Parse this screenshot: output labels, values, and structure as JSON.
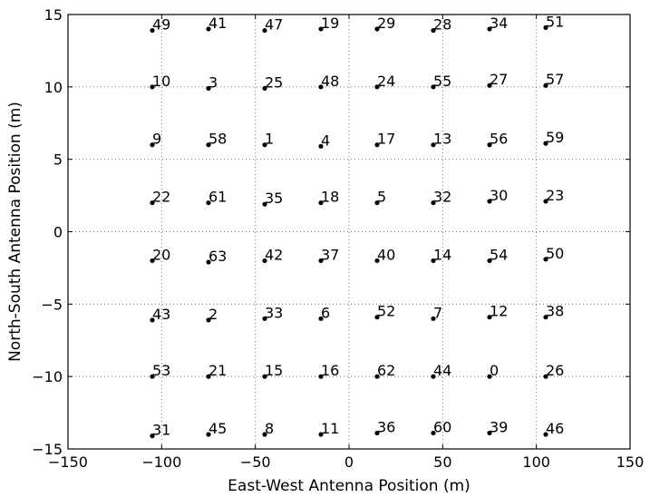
{
  "chart_data": {
    "type": "scatter",
    "xlabel": "East-West Antenna Position (m)",
    "ylabel": "North-South Antenna Position (m)",
    "xlim": [
      -150,
      150
    ],
    "ylim": [
      -15,
      15
    ],
    "xticks": [
      -150,
      -100,
      -50,
      0,
      50,
      100,
      150
    ],
    "yticks": [
      -15,
      -10,
      -5,
      0,
      5,
      10,
      15
    ],
    "xtick_labels": [
      "−150",
      "−100",
      "−50",
      "0",
      "50",
      "100",
      "150"
    ],
    "ytick_labels": [
      "−15",
      "−10",
      "−5",
      "0",
      "5",
      "10",
      "15"
    ],
    "grid": true,
    "marker_color": "#000000",
    "points": [
      {
        "x": -105,
        "y": 13.9,
        "label": "49"
      },
      {
        "x": -75,
        "y": 14.0,
        "label": "41"
      },
      {
        "x": -45,
        "y": 13.9,
        "label": "47"
      },
      {
        "x": -15,
        "y": 14.0,
        "label": "19"
      },
      {
        "x": 15,
        "y": 14.0,
        "label": "29"
      },
      {
        "x": 45,
        "y": 13.9,
        "label": "28"
      },
      {
        "x": 75,
        "y": 14.0,
        "label": "34"
      },
      {
        "x": 105,
        "y": 14.1,
        "label": "51"
      },
      {
        "x": -105,
        "y": 10.0,
        "label": "10"
      },
      {
        "x": -75,
        "y": 9.9,
        "label": "3"
      },
      {
        "x": -45,
        "y": 9.9,
        "label": "25"
      },
      {
        "x": -15,
        "y": 10.0,
        "label": "48"
      },
      {
        "x": 15,
        "y": 10.0,
        "label": "24"
      },
      {
        "x": 45,
        "y": 10.0,
        "label": "55"
      },
      {
        "x": 75,
        "y": 10.1,
        "label": "27"
      },
      {
        "x": 105,
        "y": 10.1,
        "label": "57"
      },
      {
        "x": -105,
        "y": 6.0,
        "label": "9"
      },
      {
        "x": -75,
        "y": 6.0,
        "label": "58"
      },
      {
        "x": -45,
        "y": 6.0,
        "label": "1"
      },
      {
        "x": -15,
        "y": 5.9,
        "label": "4"
      },
      {
        "x": 15,
        "y": 6.0,
        "label": "17"
      },
      {
        "x": 45,
        "y": 6.0,
        "label": "13"
      },
      {
        "x": 75,
        "y": 6.0,
        "label": "56"
      },
      {
        "x": 105,
        "y": 6.1,
        "label": "59"
      },
      {
        "x": -105,
        "y": 2.0,
        "label": "22"
      },
      {
        "x": -75,
        "y": 2.0,
        "label": "61"
      },
      {
        "x": -45,
        "y": 1.9,
        "label": "35"
      },
      {
        "x": -15,
        "y": 2.0,
        "label": "18"
      },
      {
        "x": 15,
        "y": 2.0,
        "label": "5"
      },
      {
        "x": 45,
        "y": 2.0,
        "label": "32"
      },
      {
        "x": 75,
        "y": 2.1,
        "label": "30"
      },
      {
        "x": 105,
        "y": 2.1,
        "label": "23"
      },
      {
        "x": -105,
        "y": -2.0,
        "label": "20"
      },
      {
        "x": -75,
        "y": -2.1,
        "label": "63"
      },
      {
        "x": -45,
        "y": -2.0,
        "label": "42"
      },
      {
        "x": -15,
        "y": -2.0,
        "label": "37"
      },
      {
        "x": 15,
        "y": -2.0,
        "label": "40"
      },
      {
        "x": 45,
        "y": -2.0,
        "label": "14"
      },
      {
        "x": 75,
        "y": -2.0,
        "label": "54"
      },
      {
        "x": 105,
        "y": -1.9,
        "label": "50"
      },
      {
        "x": -105,
        "y": -6.1,
        "label": "43"
      },
      {
        "x": -75,
        "y": -6.1,
        "label": "2"
      },
      {
        "x": -45,
        "y": -6.0,
        "label": "33"
      },
      {
        "x": -15,
        "y": -6.0,
        "label": "6"
      },
      {
        "x": 15,
        "y": -5.9,
        "label": "52"
      },
      {
        "x": 45,
        "y": -6.0,
        "label": "7"
      },
      {
        "x": 75,
        "y": -5.9,
        "label": "12"
      },
      {
        "x": 105,
        "y": -5.9,
        "label": "38"
      },
      {
        "x": -105,
        "y": -10.0,
        "label": "53"
      },
      {
        "x": -75,
        "y": -10.0,
        "label": "21"
      },
      {
        "x": -45,
        "y": -10.0,
        "label": "15"
      },
      {
        "x": -15,
        "y": -10.0,
        "label": "16"
      },
      {
        "x": 15,
        "y": -10.0,
        "label": "62"
      },
      {
        "x": 45,
        "y": -10.0,
        "label": "44"
      },
      {
        "x": 75,
        "y": -10.0,
        "label": "0"
      },
      {
        "x": 105,
        "y": -10.0,
        "label": "26"
      },
      {
        "x": -105,
        "y": -14.1,
        "label": "31"
      },
      {
        "x": -75,
        "y": -14.0,
        "label": "45"
      },
      {
        "x": -45,
        "y": -14.0,
        "label": "8"
      },
      {
        "x": -15,
        "y": -14.0,
        "label": "11"
      },
      {
        "x": 15,
        "y": -13.9,
        "label": "36"
      },
      {
        "x": 45,
        "y": -13.9,
        "label": "60"
      },
      {
        "x": 75,
        "y": -13.9,
        "label": "39"
      },
      {
        "x": 105,
        "y": -14.0,
        "label": "46"
      }
    ]
  }
}
